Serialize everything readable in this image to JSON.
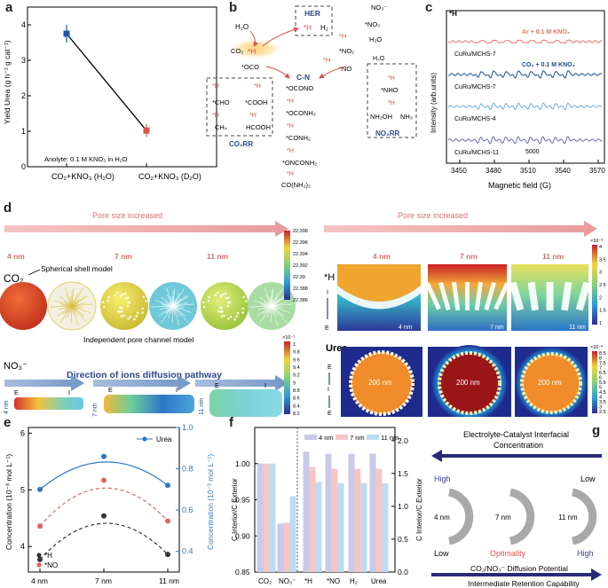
{
  "panels": {
    "a": "a",
    "b": "b",
    "c": "c",
    "d": "d",
    "e": "e",
    "f": "f",
    "g": "g"
  },
  "panel_a": {
    "ylabel": "Yield Urea (g h⁻¹ g cat⁻¹)",
    "note": "Anolyte: 0.1 M KNO₃ in H₂O",
    "yticks": [
      "0",
      "1",
      "2",
      "3",
      "4"
    ],
    "categories": [
      "CO₂+KNO₃ (H₂O)",
      "CO₂+KNO₃ (D₂O)"
    ],
    "colors": {
      "h2o": "#1f5aa6",
      "d2o": "#d9534f"
    }
  },
  "panel_b": {
    "hers_title": "HER",
    "c_n_title": "C-N",
    "co2rr_title": "CO₂RR",
    "no3rr_title": "NO₃RR",
    "species": {
      "h2o": "H₂O",
      "h": "*H",
      "h2": "H₂",
      "no3": "NO₃⁻",
      "star_no3": "*NO₃",
      "h2o_b": "H₂O",
      "no2": "*NO₂",
      "star_h_a": "*H",
      "no": "*NO",
      "co2": "CO₂",
      "oco": "*OCO",
      "ocono": "*OCONO",
      "oconh2": "*OCONH₂",
      "conh2": "*CONH₂",
      "onconh2": "*ONCONH₂",
      "urea": "CO(NH₂)₂",
      "cho": "*CHO",
      "cooh": "*COOH",
      "ch4": "CH₄",
      "hcooh": "HCOOH",
      "nho": "*NHO",
      "nh2oh": "NH₂OH",
      "nh3": "NH₃",
      "e": "e⁻",
      "star_h": "*H"
    }
  },
  "panel_c": {
    "title": "*H",
    "xlabel": "Magnetic field (G)",
    "ylabel": "Intensity (arb.units)",
    "xticks": [
      "3450",
      "3480",
      "3510",
      "3540",
      "3570"
    ],
    "scale": "5000",
    "traces": [
      {
        "label": "CuRu/MCHS-7",
        "cond": "Ar + 0.1 M KNO₃",
        "color": "#e8736b"
      },
      {
        "label": "CuRu/MCHS-7",
        "cond": "CO₂ + 0.1 M KNO₃",
        "color": "#1d4f91"
      },
      {
        "label": "CuRu/MCHS-4",
        "cond": "",
        "color": "#6aaed6"
      },
      {
        "label": "CuRu/MCHS-11",
        "cond": "",
        "color": "#6b6bb0"
      }
    ]
  },
  "panel_d": {
    "pore_increase_left": "Pore size increased",
    "pore_increase_right": "Pore size increased",
    "sizes": [
      "4 nm",
      "7 nm",
      "11 nm"
    ],
    "co2": "CO₂",
    "spherical": "Spherical shell model",
    "independent": "Independent pore channel model",
    "no3": "NO₃⁻",
    "direction": "Direction of ions diffusion pathway",
    "colorbar1": [
      "22.398",
      "22.396",
      "22.394",
      "22.392",
      "22.39",
      "22.388",
      "22.386"
    ],
    "colorbar2_title": "×10⁻¹",
    "colorbar2": [
      "1",
      "9.8",
      "9.6",
      "9.4",
      "9.2",
      "9",
      "8.8",
      "8.6",
      "8.4",
      "8.2"
    ],
    "colorbar3_title": "×10⁻³",
    "colorbar3": [
      "4",
      "3.5",
      "3",
      "2.5",
      "2",
      "1.5",
      "1"
    ],
    "colorbar4_title": "×10⁻³",
    "colorbar4": [
      "8.5",
      "8",
      "7.5",
      "7",
      "6.5",
      "6",
      "5.5",
      "5",
      "4.5",
      "4",
      "3.5",
      "3",
      "2.5"
    ],
    "h": "*H",
    "urea": "Urea",
    "e": "E",
    "i": "I",
    "nm200": "200 nm",
    "len4": "4 nm",
    "len7": "7 nm",
    "len11": "11 nm"
  },
  "chart_data": [
    {
      "type": "scatter",
      "title": "",
      "categories": [
        "CO₂+KNO₃ (H₂O)",
        "CO₂+KNO₃ (D₂O)"
      ],
      "values": [
        3.75,
        1.02
      ],
      "errors": [
        0.25,
        0.18
      ],
      "ylabel": "Yield Urea (g h⁻¹ g cat⁻¹)",
      "ylim": [
        0,
        4.5
      ]
    },
    {
      "type": "line",
      "categories": [
        "4 nm",
        "7 nm",
        "11 nm"
      ],
      "ylabel_left": "Concentration (10⁻³ mol L⁻¹)",
      "ylabel_right": "Concentration (10⁻³ mol L⁻¹)",
      "yticks_left": [
        "4",
        "5",
        "6"
      ],
      "yticks_right": [
        "0.4",
        "0.6",
        "0.8",
        "1.0"
      ],
      "ylim_left": [
        3.55,
        6.1
      ],
      "ylim_right": [
        0.3,
        1.0
      ],
      "series": [
        {
          "name": "*H",
          "values": [
            3.77,
            4.54,
            3.86
          ],
          "color": "#333333",
          "axis": "left"
        },
        {
          "name": "*NO",
          "values": [
            4.36,
            5.17,
            4.45
          ],
          "color": "#e26464",
          "axis": "left"
        },
        {
          "name": "Urea",
          "values": [
            0.7,
            0.86,
            0.72
          ],
          "color": "#2f78c4",
          "axis": "right"
        }
      ]
    },
    {
      "type": "bar",
      "categories": [
        "CO₂",
        "NO₃⁻",
        "*H",
        "*NO",
        "H₂",
        "Urea"
      ],
      "ylabel_left": "C Interior/C Exterior",
      "ylabel_right": "C Interior/C Exterior",
      "yticks_left": [
        "0.85",
        "0.90",
        "0.95",
        "1.00"
      ],
      "yticks_right": [
        "0.0",
        "0.5",
        "1.0",
        "1.5",
        "2.0"
      ],
      "ylim_left": [
        0.85,
        1.05
      ],
      "ylim_right": [
        0,
        2.2
      ],
      "series": [
        {
          "name": "4 nm",
          "color": "#c9c9e9",
          "values": [
            1.0,
            0.917,
            1.83,
            1.8,
            1.8,
            1.8
          ]
        },
        {
          "name": "7 nm",
          "color": "#f6c6c6",
          "values": [
            1.0,
            0.918,
            1.6,
            1.57,
            1.57,
            1.57
          ]
        },
        {
          "name": "11 nm",
          "color": "#bcdcf3",
          "values": [
            1.0,
            0.955,
            1.37,
            1.35,
            1.35,
            1.35
          ]
        }
      ]
    }
  ],
  "panel_g": {
    "top1": "Electrolyte-Catalyst Interfacial",
    "top2": "Concentration",
    "high_left": "High",
    "low_right": "Low",
    "size4": "4 nm",
    "size7": "7 nm",
    "size11": "11 nm",
    "low_left": "Low",
    "optimality": "Optimality",
    "high_right": "High",
    "bottom1": "CO₂/NO₃⁻ Diffusion Potential",
    "bottom2": "Intermediate Retention Capability"
  }
}
